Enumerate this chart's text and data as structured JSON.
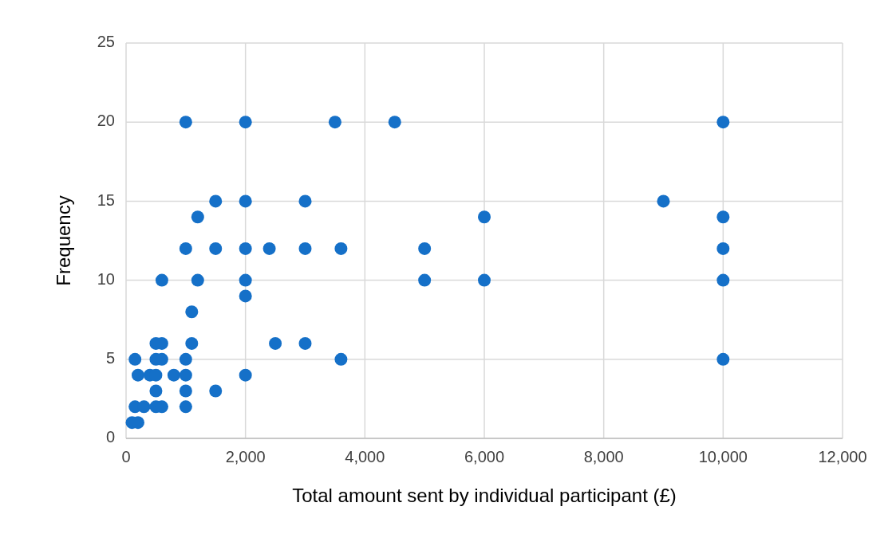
{
  "chart_data": {
    "type": "scatter",
    "xlabel": "Total amount sent by individual participant (£)",
    "ylabel": "Frequency",
    "color": "#1570c8",
    "marker": "circle",
    "grid": true,
    "x": [
      1000,
      2000,
      3500,
      4500,
      10000,
      1500,
      2000,
      3000,
      9000,
      1200,
      6000,
      10000,
      1000,
      1500,
      2000,
      2400,
      3000,
      3600,
      5000,
      10000,
      600,
      1200,
      2000,
      5000,
      6000,
      10000,
      2000,
      1100,
      500,
      600,
      1100,
      2500,
      3000,
      150,
      500,
      600,
      1000,
      3600,
      10000,
      200,
      400,
      500,
      800,
      1000,
      2000,
      500,
      1000,
      1500,
      150,
      300,
      500,
      600,
      1000,
      100,
      200
    ],
    "values": [
      20,
      20,
      20,
      20,
      20,
      15,
      15,
      15,
      15,
      14,
      14,
      14,
      12,
      12,
      12,
      12,
      12,
      12,
      12,
      12,
      10,
      10,
      10,
      10,
      10,
      10,
      9,
      8,
      6,
      6,
      6,
      6,
      6,
      5,
      5,
      5,
      5,
      5,
      5,
      4,
      4,
      4,
      4,
      4,
      4,
      3,
      3,
      3,
      2,
      2,
      2,
      2,
      2,
      1,
      1
    ],
    "xlim": [
      0,
      12000
    ],
    "xticks": [
      {
        "value": 0,
        "label": "0"
      },
      {
        "value": 2000,
        "label": "2,000"
      },
      {
        "value": 4000,
        "label": "4,000"
      },
      {
        "value": 6000,
        "label": "6,000"
      },
      {
        "value": 8000,
        "label": "8,000"
      },
      {
        "value": 10000,
        "label": "10,000"
      },
      {
        "value": 12000,
        "label": "12,000"
      }
    ],
    "ylim": [
      0,
      25
    ],
    "yticks": [
      0,
      5,
      10,
      15,
      20,
      25
    ]
  }
}
